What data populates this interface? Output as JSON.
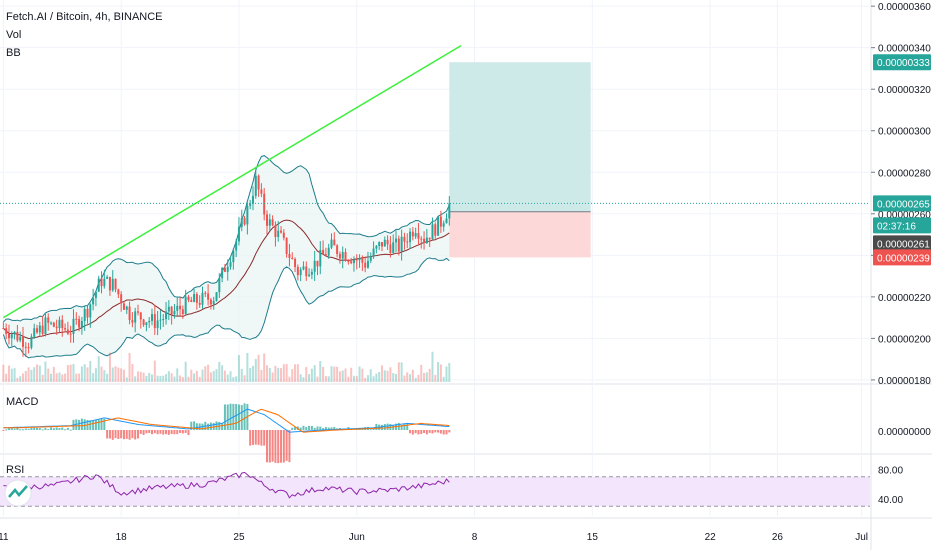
{
  "header": {
    "title": "Fetch.AI / Bitcoin, 4h, BINANCE",
    "vol_label": "Vol",
    "bb_label": "BB"
  },
  "macd": {
    "label": "MACD",
    "zero_tick": "0.00000000"
  },
  "rsi": {
    "label": "RSI",
    "ticks": [
      "80.00",
      "40.00"
    ]
  },
  "colors": {
    "up": "#26a69a",
    "down": "#ef5350",
    "trend": "#3cf03c",
    "bb": "#1e7d8c",
    "bb_mid": "#8b2b2b",
    "target": "#cde9e8",
    "stop": "#fdd8d8",
    "last_tag": "#26a69a",
    "stop_tag": "#ef5350",
    "rsi_fill": "#f3e5fc",
    "rsi_line": "#8e24aa"
  },
  "chart_data": {
    "type": "candlestick",
    "title": "Fetch.AI / Bitcoin, 4h, BINANCE",
    "y_ticks": [
      "0.00000360",
      "0.00000340",
      "0.00000320",
      "0.00000300",
      "0.00000280",
      "0.00000260",
      "0.00000240",
      "0.00000220",
      "0.00000200",
      "0.00000180"
    ],
    "y_tick_values": [
      360,
      340,
      320,
      300,
      280,
      260,
      240,
      220,
      200,
      180
    ],
    "ylim": [
      179,
      362
    ],
    "x_ticks": [
      "11",
      "18",
      "25",
      "Jun",
      "8",
      "15",
      "22",
      "26",
      "Jul"
    ],
    "x_tick_days": [
      11,
      18,
      25,
      32,
      39,
      46,
      53,
      57,
      62
    ],
    "x_first_day": 11,
    "x_range_days": [
      10.8,
      62.5
    ],
    "price_tags": [
      {
        "label": "0.00000333",
        "value": 333,
        "kind": "target"
      },
      {
        "label": "0.00000265",
        "value": 265,
        "kind": "last"
      },
      {
        "label": "02:37:16",
        "value": 257.5,
        "kind": "countdown"
      },
      {
        "label": "0.00000261",
        "value": 261,
        "kind": "entry"
      },
      {
        "label": "0.00000239",
        "value": 239,
        "kind": "stop"
      }
    ],
    "last_price": 265,
    "entry_price": 261,
    "target_price": 333,
    "stop_price": 239,
    "trend_line": {
      "day_start": 11.0,
      "price_start": 210,
      "day_end": 38.2,
      "price_end": 341
    },
    "position_box": {
      "day_start": 37.5,
      "day_end": 45.9
    },
    "trend_anchors": [
      [
        11.0,
        205
      ],
      [
        12.5,
        198
      ],
      [
        13.5,
        207
      ],
      [
        15.0,
        204
      ],
      [
        16.0,
        214
      ],
      [
        16.8,
        228
      ],
      [
        17.5,
        226
      ],
      [
        18.5,
        212
      ],
      [
        20.0,
        208
      ],
      [
        21.0,
        212
      ],
      [
        22.0,
        217
      ],
      [
        23.5,
        220
      ],
      [
        24.2,
        235
      ],
      [
        24.8,
        246
      ],
      [
        25.5,
        262
      ],
      [
        26.0,
        276
      ],
      [
        26.6,
        258
      ],
      [
        27.5,
        248
      ],
      [
        28.5,
        232
      ],
      [
        29.5,
        236
      ],
      [
        30.5,
        244
      ],
      [
        31.5,
        240
      ],
      [
        32.5,
        236
      ],
      [
        33.5,
        246
      ],
      [
        34.5,
        244
      ],
      [
        35.5,
        254
      ],
      [
        36.0,
        248
      ],
      [
        37.0,
        256
      ],
      [
        37.6,
        265
      ]
    ],
    "macd_anchors": [
      [
        11,
        0.1
      ],
      [
        15,
        0.2
      ],
      [
        17,
        0.55
      ],
      [
        19,
        0.25
      ],
      [
        22,
        0.05
      ],
      [
        24,
        0.3
      ],
      [
        25.5,
        0.95
      ],
      [
        26.5,
        0.7
      ],
      [
        28,
        -0.1
      ],
      [
        30,
        0.0
      ],
      [
        33,
        0.1
      ],
      [
        35,
        0.3
      ],
      [
        37.6,
        0.15
      ]
    ],
    "rsi_anchors": [
      [
        11,
        55
      ],
      [
        14,
        58
      ],
      [
        16.5,
        72
      ],
      [
        18,
        48
      ],
      [
        20,
        55
      ],
      [
        23,
        60
      ],
      [
        25.5,
        75
      ],
      [
        26.5,
        58
      ],
      [
        28,
        45
      ],
      [
        30,
        55
      ],
      [
        32,
        50
      ],
      [
        34,
        52
      ],
      [
        36,
        58
      ],
      [
        37.6,
        65
      ]
    ]
  }
}
